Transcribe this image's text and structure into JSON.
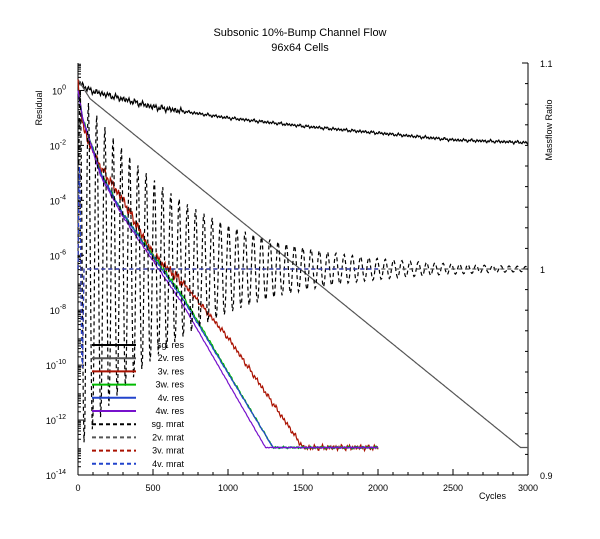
{
  "chart_data": {
    "type": "line",
    "title": "Subsonic 10%-Bump Channel Flow",
    "subtitle": "96x64 Cells",
    "xlabel": "Cycles",
    "ylabel": "Residual",
    "y2label": "Massflow Ratio",
    "xlim": [
      0,
      3000
    ],
    "ylim_log10": [
      -14,
      1
    ],
    "y2lim": [
      0.9,
      1.1
    ],
    "yscale": "log",
    "grid": false,
    "legend_position": "lower-left",
    "x_ticks": [
      "0",
      "500",
      "1000",
      "1500",
      "2000",
      "2500",
      "3000"
    ],
    "y_ticks": [
      {
        "base": "10",
        "exp": "-14"
      },
      {
        "base": "10",
        "exp": "-12"
      },
      {
        "base": "10",
        "exp": "-10"
      },
      {
        "base": "10",
        "exp": "-8"
      },
      {
        "base": "10",
        "exp": "-6"
      },
      {
        "base": "10",
        "exp": "-4"
      },
      {
        "base": "10",
        "exp": "-2"
      },
      {
        "base": "10",
        "exp": "0"
      }
    ],
    "y2_ticks": [
      {
        "label": "0.9",
        "value": 0.9
      },
      {
        "label": "1",
        "value": 1.0
      },
      {
        "label": "1.1",
        "value": 1.1
      }
    ],
    "series": [
      {
        "name": "sg. res",
        "axis": "y",
        "color": "#000000",
        "dash": "solid",
        "end": 3000,
        "points": [
          [
            0,
            0.3
          ],
          [
            80,
            0.0
          ],
          [
            500,
            -0.6
          ],
          [
            1000,
            -1.0
          ],
          [
            1500,
            -1.3
          ],
          [
            2000,
            -1.55
          ],
          [
            2500,
            -1.8
          ],
          [
            3000,
            -1.9
          ]
        ],
        "noise": 0.07
      },
      {
        "name": "2v. res",
        "axis": "y",
        "color": "#555555",
        "dash": "solid",
        "end": 3000,
        "points": [
          [
            0,
            0.4
          ],
          [
            80,
            -0.3
          ],
          [
            2950,
            -13.0
          ],
          [
            3000,
            -13.0
          ]
        ],
        "noise": 0.0
      },
      {
        "name": "3v. res",
        "axis": "y",
        "color": "#aa1100",
        "dash": "solid",
        "end": 2000,
        "points": [
          [
            0,
            0.2
          ],
          [
            40,
            -1.5
          ],
          [
            150,
            -2.8
          ],
          [
            300,
            -4.0
          ],
          [
            500,
            -6.0
          ],
          [
            700,
            -7.0
          ],
          [
            1000,
            -9.0
          ],
          [
            1500,
            -13.0
          ],
          [
            2000,
            -13.0
          ]
        ],
        "noise": 0.12
      },
      {
        "name": "3w. res",
        "axis": "y",
        "color": "#00bb00",
        "dash": "solid",
        "end": 2000,
        "points": [
          [
            0,
            0.0
          ],
          [
            30,
            -1.0
          ],
          [
            60,
            -1.5
          ],
          [
            150,
            -3.0
          ],
          [
            300,
            -4.5
          ],
          [
            700,
            -7.5
          ],
          [
            1300,
            -13.0
          ],
          [
            2000,
            -13.0
          ]
        ],
        "noise": 0.05
      },
      {
        "name": "4v. res",
        "axis": "y",
        "color": "#2244cc",
        "dash": "solid",
        "end": 2000,
        "points": [
          [
            0,
            0.0
          ],
          [
            30,
            -1.0
          ],
          [
            150,
            -3.0
          ],
          [
            300,
            -4.5
          ],
          [
            700,
            -7.6
          ],
          [
            1300,
            -13.0
          ],
          [
            2000,
            -13.0
          ]
        ],
        "noise": 0.03
      },
      {
        "name": "4w. res",
        "axis": "y",
        "color": "#7711cc",
        "dash": "solid",
        "end": 2000,
        "points": [
          [
            0,
            0.0
          ],
          [
            30,
            -1.0
          ],
          [
            150,
            -3.1
          ],
          [
            300,
            -4.6
          ],
          [
            700,
            -7.8
          ],
          [
            1250,
            -13.0
          ],
          [
            2000,
            -13.0
          ]
        ],
        "noise": 0.02
      },
      {
        "name": "sg. mrat",
        "axis": "y2",
        "color": "#000000",
        "dash": "4,3",
        "end": 3000,
        "mode": "oscillation",
        "amplitude": 0.09,
        "decay": 700,
        "period": 55,
        "settle": 1.0
      },
      {
        "name": "2v. mrat",
        "axis": "y2",
        "color": "#555555",
        "dash": "4,3",
        "end": 3000,
        "mode": "flat",
        "settle": 1.0
      },
      {
        "name": "3v. mrat",
        "axis": "y2",
        "color": "#aa1100",
        "dash": "4,3",
        "end": 2000,
        "mode": "flat",
        "settle": 1.0
      },
      {
        "name": "4v. mrat",
        "axis": "y2",
        "color": "#2244cc",
        "dash": "4,3",
        "end": 2000,
        "mode": "flat",
        "settle": 1.0
      }
    ]
  }
}
